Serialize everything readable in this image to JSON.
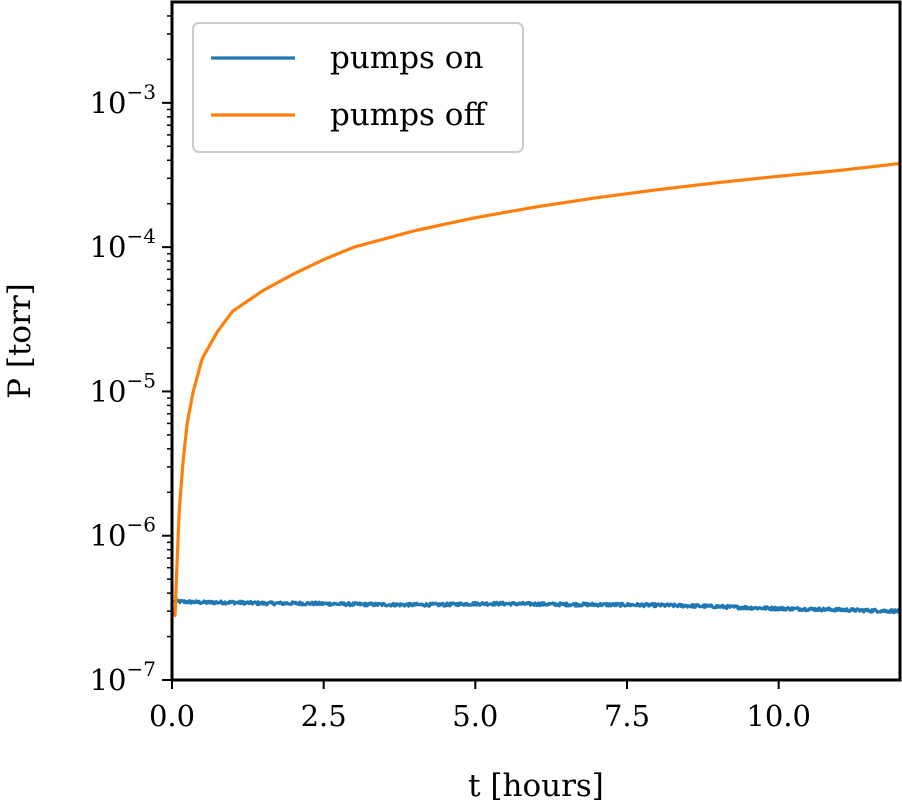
{
  "chart_data": {
    "type": "line",
    "title": "",
    "xlabel": "t [hours]",
    "ylabel": "P [torr]",
    "xlim": [
      0,
      12
    ],
    "ylim": [
      1e-07,
      0.005
    ],
    "yscale": "log",
    "grid": false,
    "legend_position": "top-left",
    "x_ticks": [
      0,
      2.5,
      5,
      7.5,
      10
    ],
    "x_tick_labels": [
      "0.0",
      "2.5",
      "5.0",
      "7.5",
      "10.0"
    ],
    "y_ticks": [
      1e-07,
      1e-06,
      1e-05,
      0.0001,
      0.001
    ],
    "y_tick_labels": [
      {
        "base": "10",
        "exp": "−7"
      },
      {
        "base": "10",
        "exp": "−6"
      },
      {
        "base": "10",
        "exp": "−5"
      },
      {
        "base": "10",
        "exp": "−4"
      },
      {
        "base": "10",
        "exp": "−3"
      }
    ],
    "series": [
      {
        "name": "pumps on",
        "color": "#1f77b4",
        "x": [
          0.05,
          0.1,
          0.5,
          1,
          1.5,
          2,
          2.5,
          3,
          3.5,
          4,
          4.5,
          5,
          5.5,
          6,
          6.5,
          7,
          7.5,
          8,
          8.5,
          9,
          9.5,
          10,
          10.5,
          11,
          11.5,
          12
        ],
        "y": [
          3.5e-07,
          3.5e-07,
          3.45e-07,
          3.45e-07,
          3.4e-07,
          3.4e-07,
          3.38e-07,
          3.35e-07,
          3.33e-07,
          3.32e-07,
          3.33e-07,
          3.38e-07,
          3.38e-07,
          3.36e-07,
          3.34e-07,
          3.33e-07,
          3.32e-07,
          3.3e-07,
          3.27e-07,
          3.23e-07,
          3.17e-07,
          3.13e-07,
          3.1e-07,
          3.07e-07,
          3.03e-07,
          3e-07
        ]
      },
      {
        "name": "pumps off",
        "color": "#ff7f0e",
        "x": [
          0.05,
          0.08,
          0.12,
          0.18,
          0.25,
          0.35,
          0.5,
          0.75,
          1,
          1.5,
          2,
          2.5,
          3,
          4,
          5,
          6,
          7,
          8,
          9,
          10,
          11,
          12
        ],
        "y": [
          2.8e-07,
          6e-07,
          1.5e-06,
          3.2e-06,
          6e-06,
          1e-05,
          1.7e-05,
          2.6e-05,
          3.6e-05,
          5e-05,
          6.5e-05,
          8.2e-05,
          0.0001,
          0.00013,
          0.00016,
          0.00019,
          0.00022,
          0.00025,
          0.00028,
          0.00031,
          0.00034,
          0.00038
        ]
      }
    ]
  }
}
